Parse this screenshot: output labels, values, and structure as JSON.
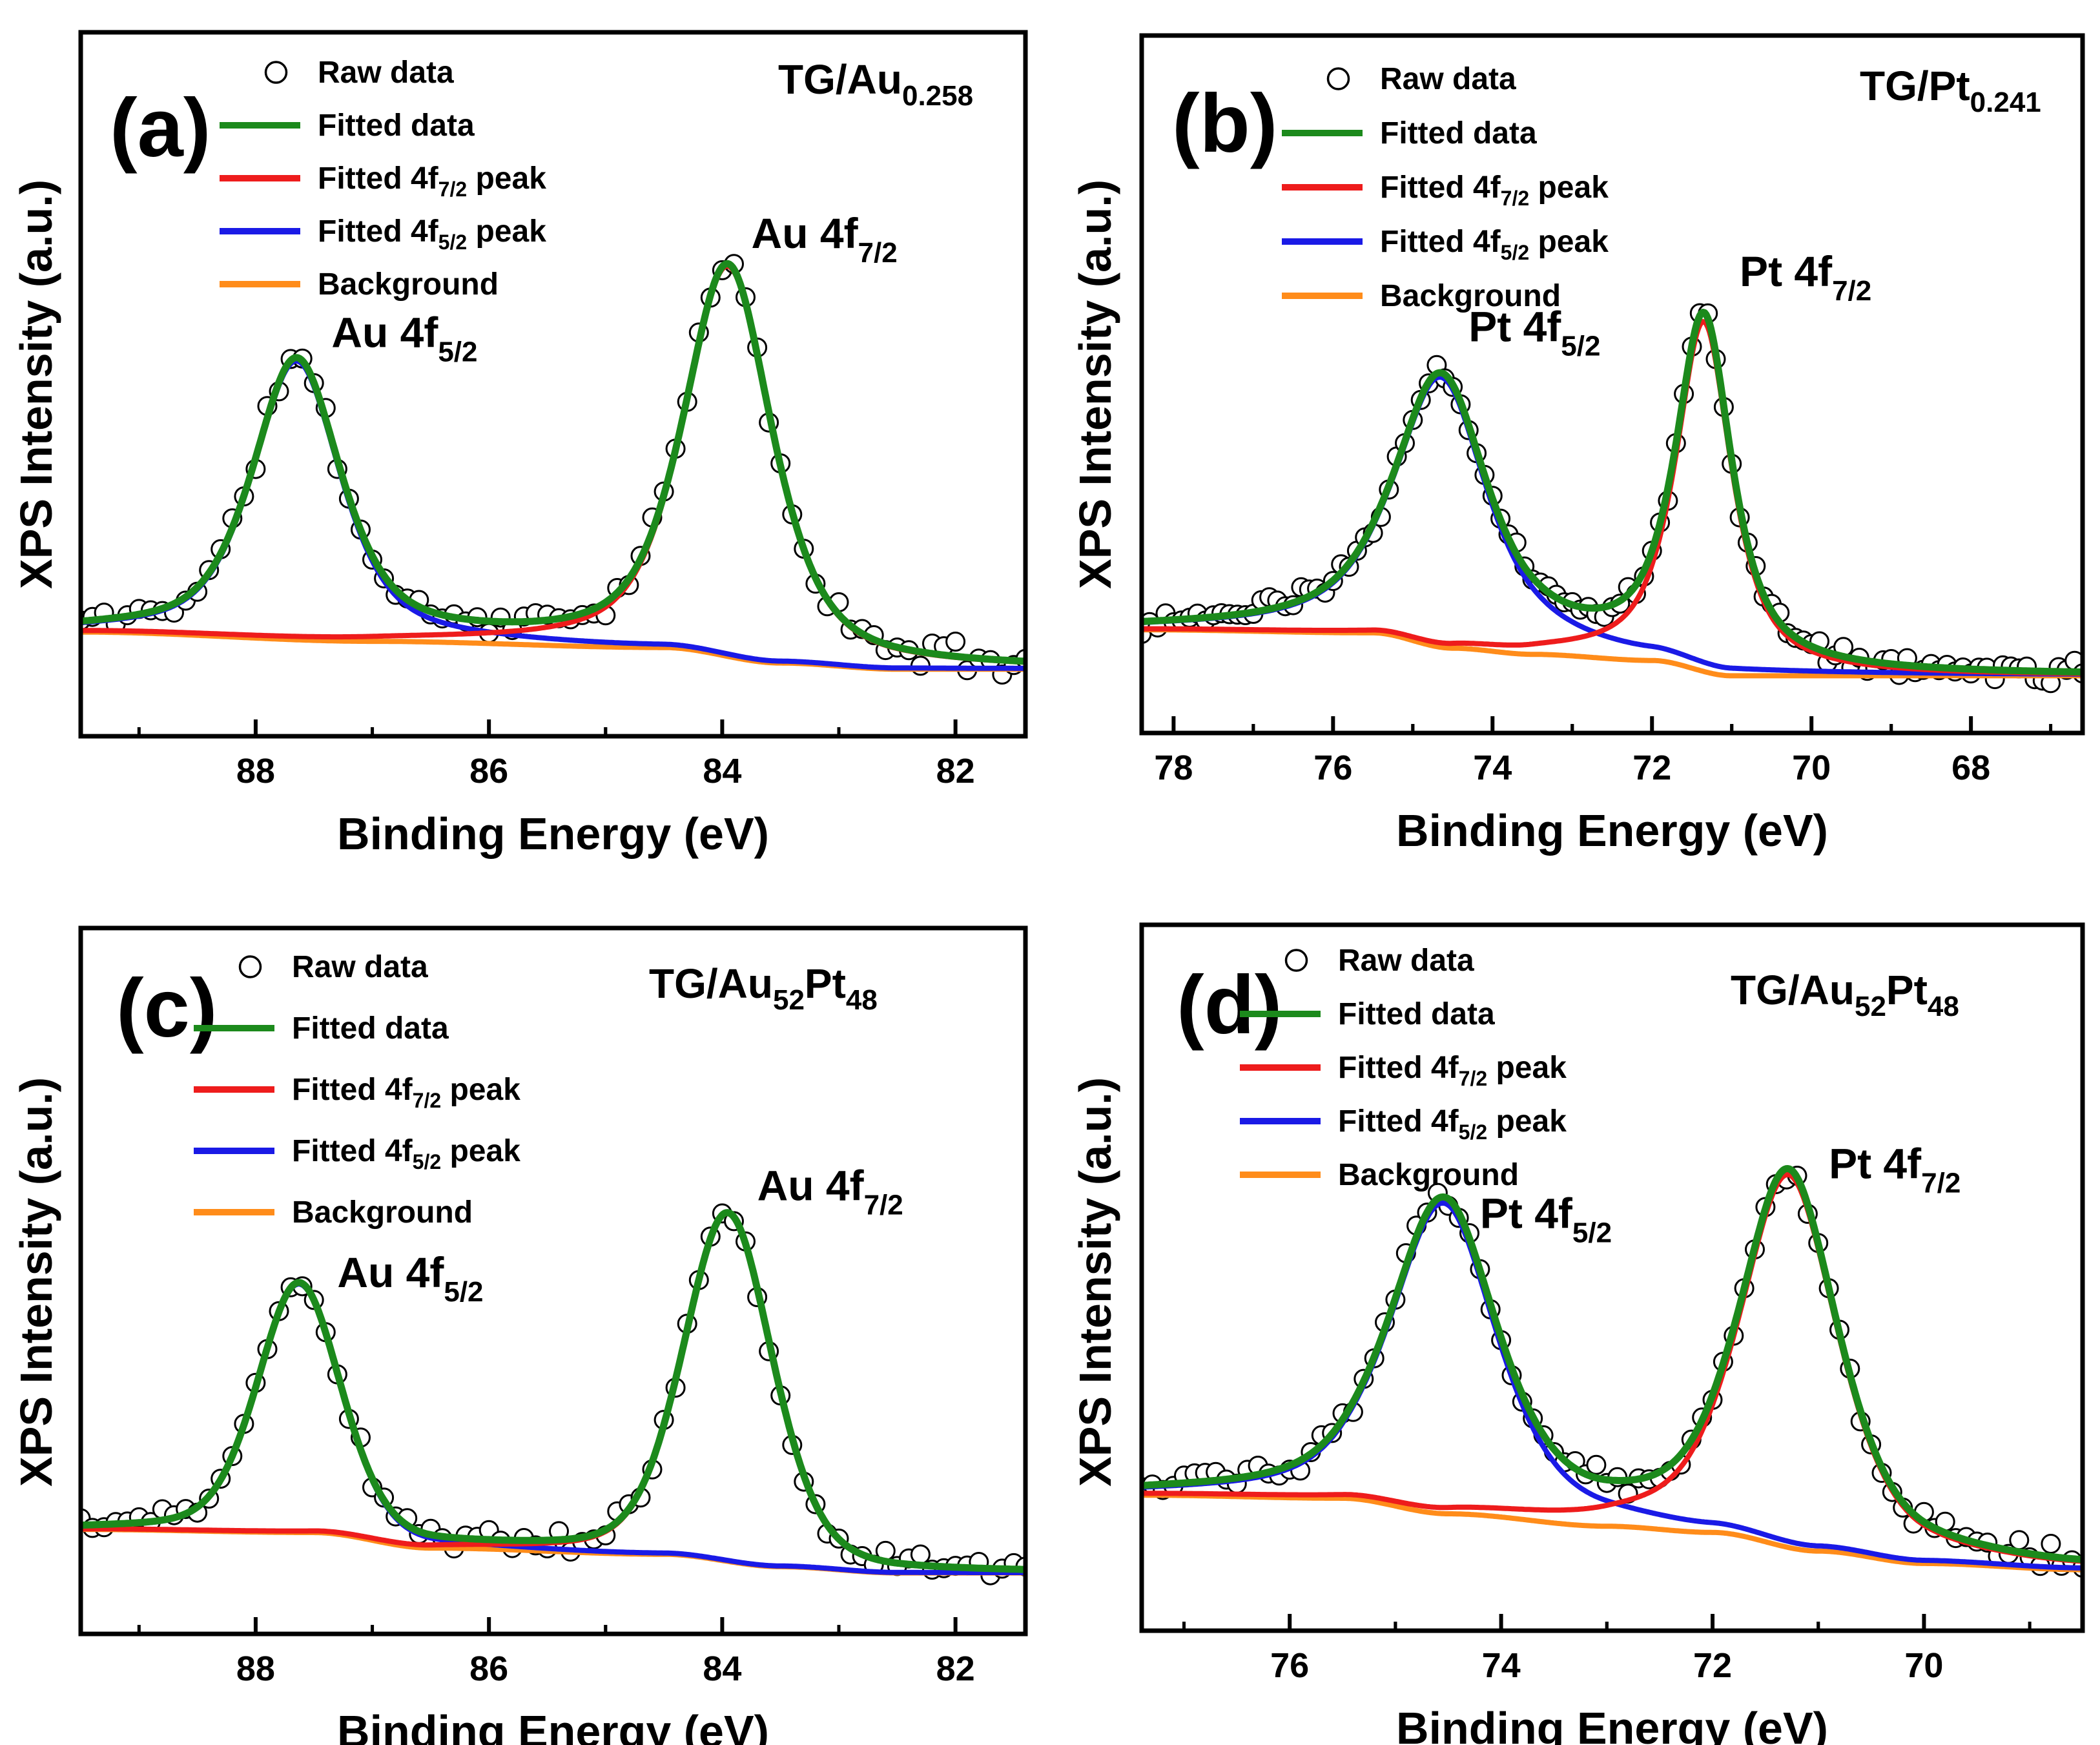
{
  "colors": {
    "fitted": "#1c8a1c",
    "peak72": "#ee1c1c",
    "peak52": "#1a1ae6",
    "background": "#ff8c1a",
    "axis": "#000000",
    "raw_marker_fill": "#ffffff"
  },
  "chart_data": [
    {
      "panel": "(a)",
      "type": "line",
      "sample_main": "TG/Au",
      "sample_sub": "0.258",
      "xlabel": "Binding Energy (eV)",
      "ylabel": "XPS Intensity (a.u.)",
      "xlim": [
        89.5,
        81.4
      ],
      "ylim": [
        0,
        100
      ],
      "xticks": [
        {
          "v": 88,
          "label": "88"
        },
        {
          "v": 86,
          "label": "86"
        },
        {
          "v": 84,
          "label": "84"
        },
        {
          "v": 82,
          "label": "82"
        }
      ],
      "legend": [
        {
          "key": "raw",
          "label": "Raw data"
        },
        {
          "key": "fit",
          "label": "Fitted data"
        },
        {
          "key": "p72",
          "label_pre": "Fitted 4f",
          "label_sub": "7/2",
          "label_post": " peak"
        },
        {
          "key": "p52",
          "label_pre": "Fitted 4f",
          "label_sub": "5/2",
          "label_post": " peak"
        },
        {
          "key": "bg",
          "label": "Background"
        }
      ],
      "peak_labels": [
        {
          "text": "Au 4f",
          "sub": "5/2",
          "x": 87.35,
          "y": 56
        },
        {
          "text": "Au 4f",
          "sub": "7/2",
          "x": 83.75,
          "y": 72
        }
      ],
      "background": {
        "points": [
          [
            89.5,
            10
          ],
          [
            87.0,
            8.5
          ],
          [
            84.5,
            7.5
          ],
          [
            83.5,
            5
          ],
          [
            82.5,
            4
          ],
          [
            81.4,
            4
          ]
        ]
      },
      "peaks": [
        {
          "key": "p52",
          "center": 87.65,
          "height": 45,
          "hwhm": 0.45,
          "eta": 0.6
        },
        {
          "key": "p72",
          "center": 83.95,
          "height": 63,
          "hwhm": 0.45,
          "eta": 0.6
        }
      ],
      "raw": {
        "step": 0.1,
        "noise": 2.2,
        "seed": 11
      }
    },
    {
      "panel": "(b)",
      "type": "line",
      "sample_main": "TG/Pt",
      "sample_sub": "0.241",
      "xlabel": "Binding Energy (eV)",
      "ylabel": "XPS Intensity (a.u.)",
      "xlim": [
        78.4,
        66.6
      ],
      "ylim": [
        0,
        100
      ],
      "xticks": [
        {
          "v": 78,
          "label": "78"
        },
        {
          "v": 76,
          "label": "76"
        },
        {
          "v": 74,
          "label": "74"
        },
        {
          "v": 72,
          "label": "72"
        },
        {
          "v": 70,
          "label": "70"
        },
        {
          "v": 68,
          "label": "68"
        }
      ],
      "legend": [
        {
          "key": "raw",
          "label": "Raw data"
        },
        {
          "key": "fit",
          "label": "Fitted data"
        },
        {
          "key": "p72",
          "label_pre": "Fitted 4f",
          "label_sub": "7/2",
          "label_post": " peak"
        },
        {
          "key": "p52",
          "label_pre": "Fitted 4f",
          "label_sub": "5/2",
          "label_post": " peak"
        },
        {
          "key": "bg",
          "label": "Background"
        }
      ],
      "peak_labels": [
        {
          "text": "Pt 4f",
          "sub": "5/2",
          "x": 74.3,
          "y": 57
        },
        {
          "text": "Pt 4f",
          "sub": "7/2",
          "x": 70.9,
          "y": 66
        }
      ],
      "background": {
        "points": [
          [
            78.4,
            10
          ],
          [
            75.5,
            9.5
          ],
          [
            74.5,
            7
          ],
          [
            73.5,
            6
          ],
          [
            72.0,
            5
          ],
          [
            71.0,
            2.5
          ],
          [
            66.6,
            2.5
          ]
        ]
      },
      "peaks": [
        {
          "key": "p52",
          "center": 74.65,
          "height": 44,
          "hwhm": 0.7,
          "eta": 0.8
        },
        {
          "key": "p72",
          "center": 71.35,
          "height": 57,
          "hwhm": 0.42,
          "eta": 0.8
        }
      ],
      "raw": {
        "step": 0.1,
        "noise": 2.0,
        "seed": 23
      }
    },
    {
      "panel": "(c)",
      "type": "line",
      "sample_main": "TG/Au",
      "sample_sub": "52",
      "sample_main2": "Pt",
      "sample_sub2": "48",
      "xlabel": "Binding Energy (eV)",
      "ylabel": "XPS Intensity (a.u.)",
      "xlim": [
        89.5,
        81.4
      ],
      "ylim": [
        0,
        100
      ],
      "xticks": [
        {
          "v": 88,
          "label": "88"
        },
        {
          "v": 86,
          "label": "86"
        },
        {
          "v": 84,
          "label": "84"
        },
        {
          "v": 82,
          "label": "82"
        }
      ],
      "legend": [
        {
          "key": "raw",
          "label": "Raw data"
        },
        {
          "key": "fit",
          "label": "Fitted data"
        },
        {
          "key": "p72",
          "label_pre": "Fitted 4f",
          "label_sub": "7/2",
          "label_post": " peak"
        },
        {
          "key": "p52",
          "label_pre": "Fitted 4f",
          "label_sub": "5/2",
          "label_post": " peak"
        },
        {
          "key": "bg",
          "label": "Background"
        }
      ],
      "peak_labels": [
        {
          "text": "Au 4f",
          "sub": "5/2",
          "x": 87.3,
          "y": 49
        },
        {
          "text": "Au 4f",
          "sub": "7/2",
          "x": 83.7,
          "y": 63
        }
      ],
      "background": {
        "points": [
          [
            89.5,
            10
          ],
          [
            87.5,
            9.5
          ],
          [
            86.5,
            7
          ],
          [
            84.5,
            6
          ],
          [
            83.5,
            4
          ],
          [
            82.5,
            3
          ],
          [
            81.4,
            3
          ]
        ]
      },
      "peaks": [
        {
          "key": "p52",
          "center": 87.63,
          "height": 40,
          "hwhm": 0.42,
          "eta": 0.3
        },
        {
          "key": "p72",
          "center": 83.95,
          "height": 56,
          "hwhm": 0.45,
          "eta": 0.3
        }
      ],
      "raw": {
        "step": 0.1,
        "noise": 1.8,
        "seed": 37
      }
    },
    {
      "panel": "(d)",
      "type": "line",
      "sample_main": "TG/Au",
      "sample_sub": "52",
      "sample_main2": "Pt",
      "sample_sub2": "48",
      "xlabel": "Binding Energy (eV)",
      "ylabel": "XPS Intensity (a.u.)",
      "xlim": [
        77.4,
        68.5
      ],
      "ylim": [
        0,
        100
      ],
      "xticks": [
        {
          "v": 76,
          "label": "76"
        },
        {
          "v": 74,
          "label": "74"
        },
        {
          "v": 72,
          "label": "72"
        },
        {
          "v": 70,
          "label": "70"
        }
      ],
      "legend": [
        {
          "key": "raw",
          "label": "Raw data"
        },
        {
          "key": "fit",
          "label": "Fitted data"
        },
        {
          "key": "p72",
          "label_pre": "Fitted 4f",
          "label_sub": "7/2",
          "label_post": " peak"
        },
        {
          "key": "p52",
          "label_pre": "Fitted 4f",
          "label_sub": "5/2",
          "label_post": " peak"
        },
        {
          "key": "bg",
          "label": "Background"
        }
      ],
      "peak_labels": [
        {
          "text": "Pt 4f",
          "sub": "5/2",
          "x": 74.2,
          "y": 58
        },
        {
          "text": "Pt 4f",
          "sub": "7/2",
          "x": 70.9,
          "y": 66
        }
      ],
      "background": {
        "points": [
          [
            77.4,
            15
          ],
          [
            75.5,
            14.5
          ],
          [
            74.5,
            12
          ],
          [
            73.0,
            10
          ],
          [
            72.0,
            9
          ],
          [
            71.0,
            6
          ],
          [
            70.0,
            4
          ],
          [
            68.5,
            3
          ]
        ]
      },
      "peaks": [
        {
          "key": "p52",
          "center": 74.55,
          "height": 50,
          "hwhm": 0.6,
          "eta": 0.6
        },
        {
          "key": "p72",
          "center": 71.28,
          "height": 60,
          "hwhm": 0.55,
          "eta": 0.6
        }
      ],
      "raw": {
        "step": 0.1,
        "noise": 2.0,
        "seed": 53
      }
    }
  ]
}
